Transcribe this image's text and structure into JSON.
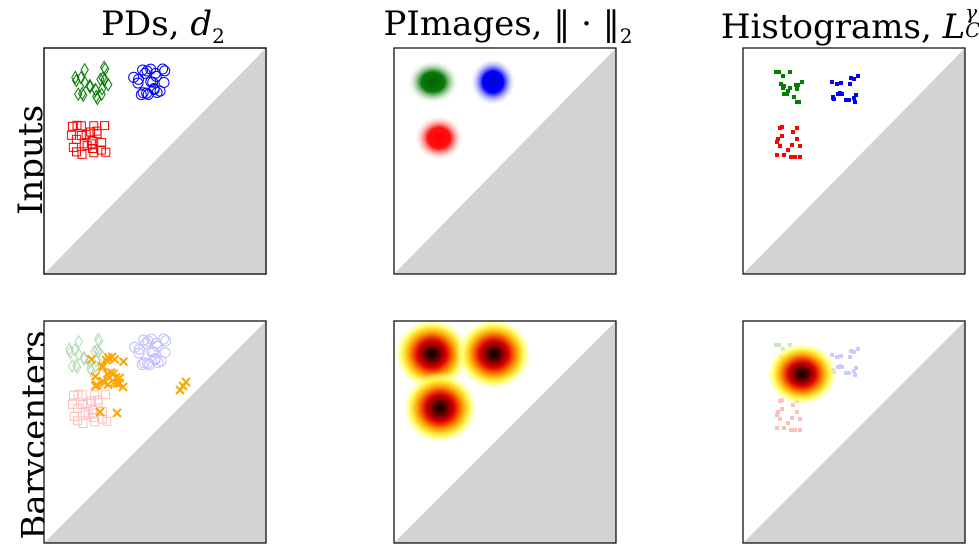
{
  "columns": [
    {
      "title": "PDs, ",
      "symbol": "d",
      "sub": "2",
      "sup": ""
    },
    {
      "title": "PImages, ",
      "symbol": "‖ · ‖",
      "sub": "2",
      "sup": ""
    },
    {
      "title": "Histograms, ",
      "symbol": "L",
      "sub": "C",
      "sup": "γ"
    }
  ],
  "rows": [
    "Inputs",
    "Barycenters"
  ],
  "colors": {
    "green": "#007f00",
    "blue": "#0000ff",
    "red": "#ff0000",
    "orange": "#ffa500",
    "diagonal_fill": "#d3d3d3"
  }
}
